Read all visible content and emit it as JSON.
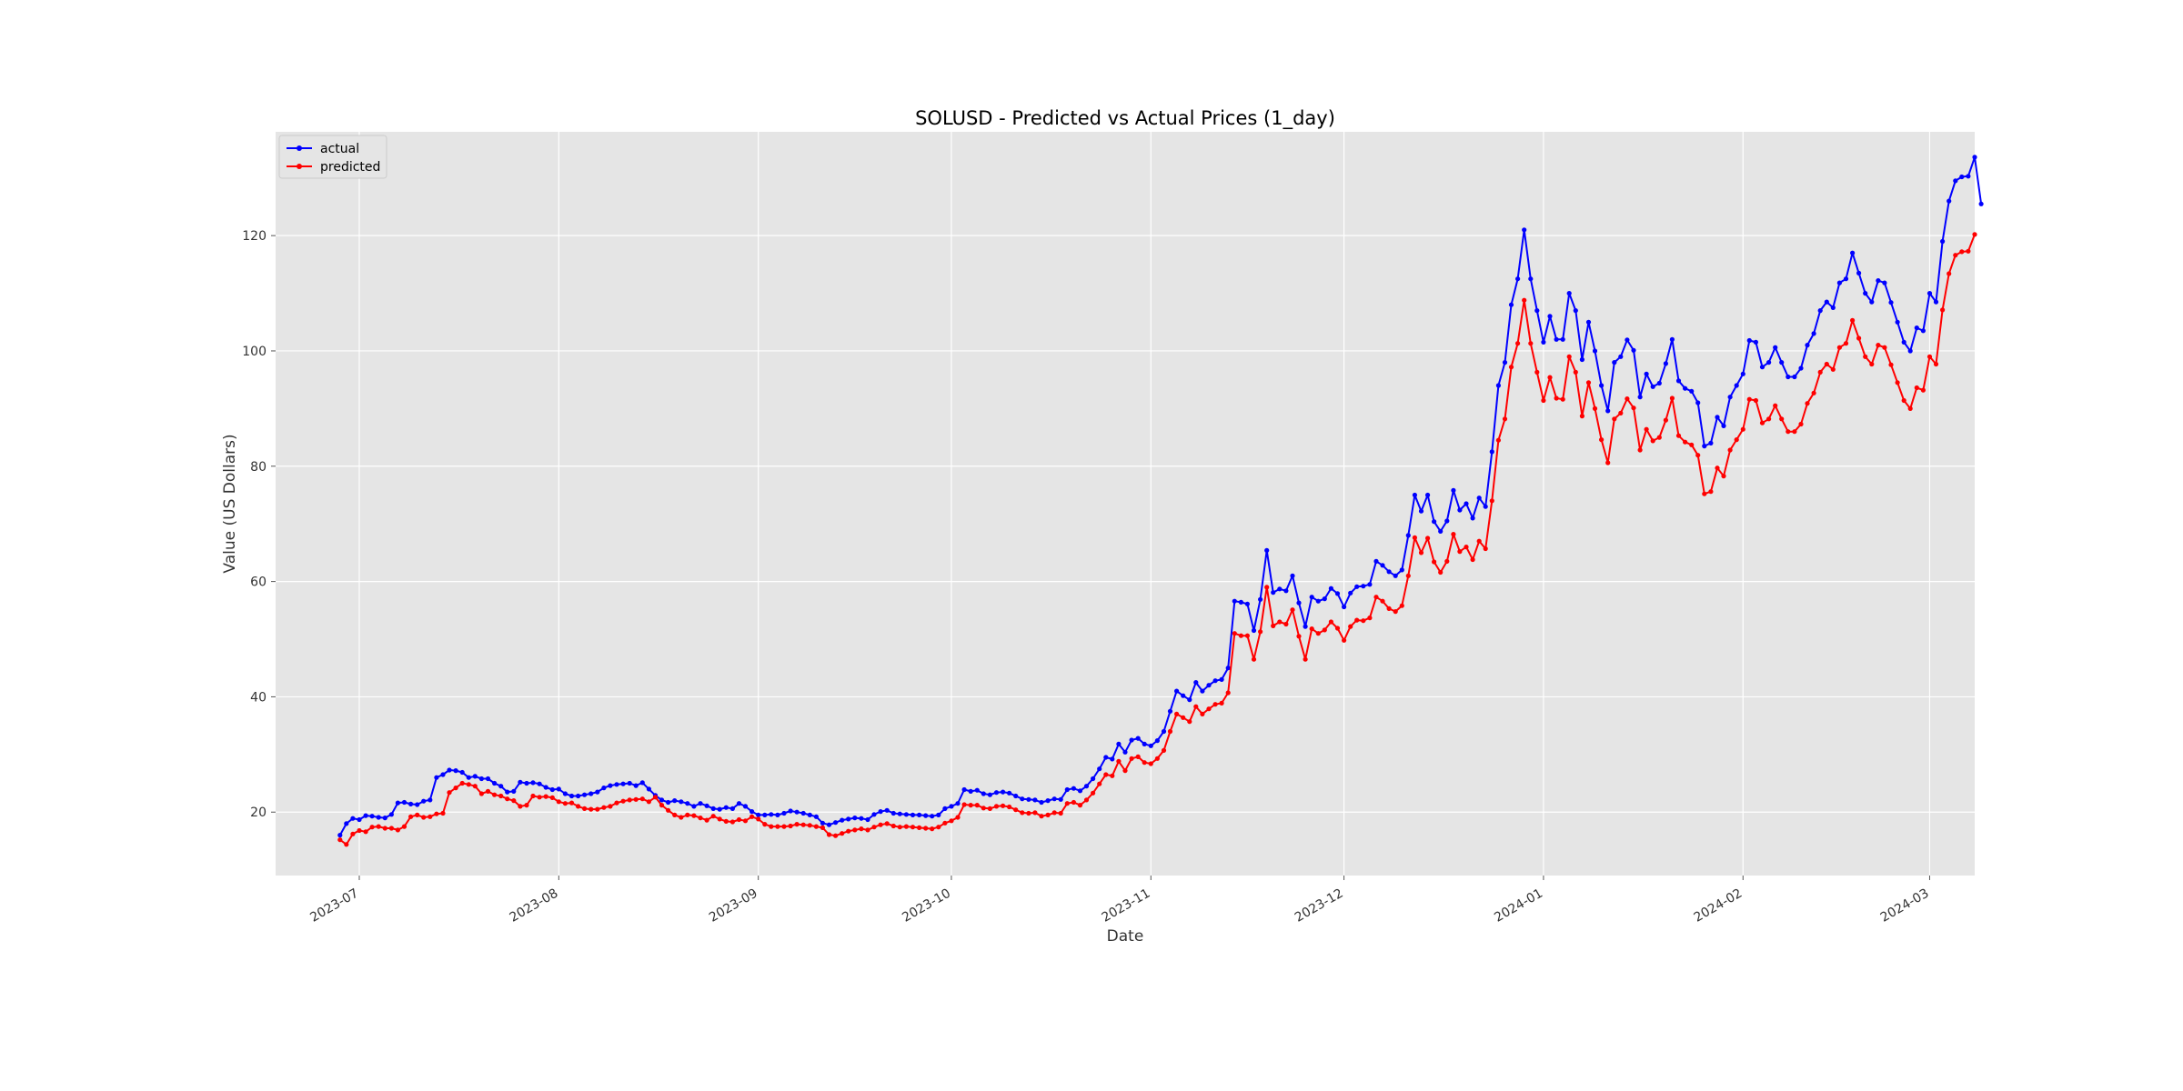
{
  "chart_data": {
    "type": "line",
    "title": "SOLUSD - Predicted vs Actual Prices (1_day)",
    "xlabel": "Date",
    "ylabel": "Value (US Dollars)",
    "x_ticks": [
      "2023-07",
      "2023-08",
      "2023-09",
      "2023-10",
      "2023-11",
      "2023-12",
      "2024-01",
      "2024-02",
      "2024-03"
    ],
    "y_ticks": [
      20,
      40,
      60,
      80,
      100,
      120
    ],
    "x_range": [
      "2023-06-18",
      "2024-03-08"
    ],
    "ylim": [
      9,
      138
    ],
    "grid": true,
    "legend_position": "top-left",
    "colors": {
      "plot_background": "#e5e5e5",
      "grid": "#ffffff",
      "actual": "#0000ff",
      "predicted": "#ff0000"
    },
    "start_date": "2023-06-28",
    "series": [
      {
        "name": "actual",
        "color": "#0000ff",
        "values": [
          16.0,
          18.0,
          18.9,
          18.7,
          19.4,
          19.3,
          19.1,
          19.0,
          19.6,
          21.6,
          21.7,
          21.4,
          21.3,
          21.9,
          22.1,
          26.0,
          26.5,
          27.3,
          27.2,
          26.9,
          26.0,
          26.2,
          25.8,
          25.8,
          25.0,
          24.5,
          23.5,
          23.6,
          25.2,
          25.0,
          25.1,
          24.9,
          24.3,
          23.9,
          24.0,
          23.2,
          22.8,
          22.8,
          23.0,
          23.2,
          23.5,
          24.2,
          24.6,
          24.8,
          24.9,
          25.0,
          24.6,
          25.1,
          24.0,
          22.9,
          22.1,
          21.7,
          22.0,
          21.8,
          21.5,
          21.0,
          21.5,
          21.1,
          20.6,
          20.5,
          20.8,
          20.6,
          21.5,
          21.0,
          20.1,
          19.5,
          19.5,
          19.6,
          19.5,
          19.8,
          20.2,
          20.0,
          19.8,
          19.5,
          19.2,
          18.1,
          17.8,
          18.2,
          18.6,
          18.8,
          19.0,
          18.9,
          18.7,
          19.6,
          20.1,
          20.3,
          19.8,
          19.7,
          19.6,
          19.5,
          19.5,
          19.4,
          19.3,
          19.5,
          20.6,
          21.0,
          21.5,
          23.9,
          23.6,
          23.8,
          23.2,
          23.0,
          23.4,
          23.5,
          23.3,
          22.8,
          22.3,
          22.2,
          22.1,
          21.7,
          22.0,
          22.3,
          22.2,
          23.9,
          24.1,
          23.7,
          24.5,
          25.8,
          27.5,
          29.5,
          29.2,
          31.8,
          30.4,
          32.5,
          32.8,
          31.8,
          31.5,
          32.4,
          34.0,
          37.5,
          41.0,
          40.2,
          39.5,
          42.5,
          41.0,
          42.0,
          42.8,
          43.0,
          45.0,
          56.6,
          56.4,
          56.1,
          51.5,
          56.9,
          65.4,
          58.1,
          58.7,
          58.4,
          61.0,
          56.3,
          52.2,
          57.3,
          56.6,
          57.0,
          58.8,
          57.9,
          55.6,
          58.0,
          59.1,
          59.2,
          59.5,
          63.5,
          62.8,
          61.7,
          61.0,
          62.0,
          68.0,
          75.0,
          72.2,
          75.0,
          70.4,
          68.7,
          70.5,
          75.8,
          72.4,
          73.5,
          71.0,
          74.5,
          73.0,
          82.5,
          94.0,
          98.0,
          108.0,
          112.5,
          121.0,
          112.5,
          107.0,
          101.5,
          106.0,
          102.0,
          102.0,
          110.0,
          107.0,
          98.5,
          105.0,
          100.0,
          94.0,
          89.6,
          98.0,
          99.0,
          101.9,
          100.1,
          92.0,
          96.0,
          93.8,
          94.4,
          97.8,
          102.0,
          94.8,
          93.5,
          93.0,
          91.0,
          83.5,
          84.0,
          88.5,
          87.0,
          92.0,
          94.0,
          96.0,
          101.8,
          101.5,
          97.2,
          98.0,
          100.6,
          98.0,
          95.5,
          95.5,
          97.0,
          101.0,
          103.0,
          107.0,
          108.5,
          107.5,
          111.8,
          112.5,
          117.0,
          113.5,
          110.0,
          108.5,
          112.2,
          111.8,
          108.4,
          105.0,
          101.5,
          100.0,
          104.0,
          103.5,
          110.0,
          108.5,
          119.0,
          126.0,
          129.5,
          130.2,
          130.3,
          133.6,
          125.5
        ]
      },
      {
        "name": "predicted",
        "color": "#ff0000",
        "values": [
          15.2,
          14.4,
          16.2,
          16.8,
          16.6,
          17.4,
          17.5,
          17.2,
          17.2,
          16.9,
          17.5,
          19.2,
          19.5,
          19.1,
          19.2,
          19.7,
          19.8,
          23.4,
          24.2,
          25.0,
          24.8,
          24.5,
          23.2,
          23.6,
          23.0,
          22.8,
          22.3,
          22.0,
          21.0,
          21.2,
          22.8,
          22.6,
          22.7,
          22.5,
          21.8,
          21.5,
          21.6,
          21.0,
          20.6,
          20.5,
          20.5,
          20.8,
          21.0,
          21.6,
          21.9,
          22.1,
          22.2,
          22.3,
          21.8,
          22.6,
          21.2,
          20.3,
          19.5,
          19.1,
          19.5,
          19.4,
          19.0,
          18.6,
          19.3,
          18.8,
          18.4,
          18.3,
          18.7,
          18.5,
          19.2,
          18.8,
          17.9,
          17.5,
          17.5,
          17.5,
          17.6,
          17.9,
          17.8,
          17.7,
          17.5,
          17.3,
          16.1,
          15.9,
          16.3,
          16.7,
          16.9,
          17.1,
          16.9,
          17.4,
          17.8,
          18.0,
          17.6,
          17.4,
          17.5,
          17.4,
          17.3,
          17.2,
          17.1,
          17.4,
          18.1,
          18.5,
          19.1,
          21.3,
          21.2,
          21.2,
          20.7,
          20.6,
          21.0,
          21.1,
          20.9,
          20.4,
          19.9,
          19.8,
          19.9,
          19.3,
          19.5,
          19.9,
          19.8,
          21.5,
          21.7,
          21.2,
          22.1,
          23.3,
          24.9,
          26.5,
          26.3,
          28.8,
          27.2,
          29.3,
          29.6,
          28.6,
          28.4,
          29.3,
          30.7,
          34.0,
          37.0,
          36.4,
          35.7,
          38.3,
          37.0,
          37.9,
          38.7,
          38.9,
          40.7,
          51.0,
          50.6,
          50.6,
          46.5,
          51.3,
          59.0,
          52.3,
          53.0,
          52.6,
          55.1,
          50.5,
          46.5,
          51.8,
          51.0,
          51.6,
          53.0,
          51.9,
          49.8,
          52.2,
          53.3,
          53.2,
          53.7,
          57.3,
          56.6,
          55.3,
          54.8,
          55.8,
          61.0,
          67.6,
          65.0,
          67.5,
          63.4,
          61.6,
          63.5,
          68.2,
          65.2,
          66.0,
          63.8,
          67.0,
          65.7,
          74.0,
          84.5,
          88.2,
          97.2,
          101.3,
          108.8,
          101.3,
          96.3,
          91.4,
          95.4,
          91.8,
          91.6,
          99.0,
          96.3,
          88.7,
          94.5,
          90.0,
          84.6,
          80.6,
          88.2,
          89.2,
          91.7,
          90.1,
          82.8,
          86.4,
          84.4,
          85.0,
          88.0,
          91.8,
          85.3,
          84.2,
          83.7,
          81.9,
          75.2,
          75.6,
          79.7,
          78.3,
          82.8,
          84.6,
          86.4,
          91.6,
          91.4,
          87.5,
          88.2,
          90.5,
          88.2,
          86.0,
          86.0,
          87.3,
          90.9,
          92.7,
          96.3,
          97.7,
          96.8,
          100.6,
          101.3,
          105.3,
          102.2,
          99.0,
          97.7,
          101.0,
          100.6,
          97.6,
          94.5,
          91.4,
          90.0,
          93.6,
          93.2,
          99.0,
          97.7,
          107.1,
          113.4,
          116.6,
          117.2,
          117.3,
          120.2
        ]
      }
    ]
  }
}
